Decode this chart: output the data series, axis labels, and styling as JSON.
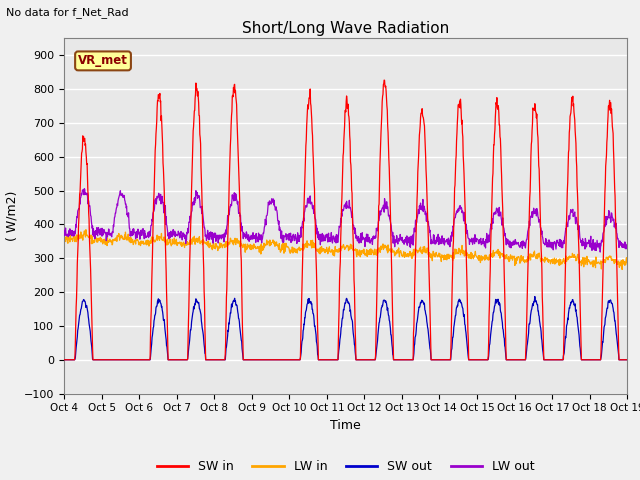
{
  "title": "Short/Long Wave Radiation",
  "subtitle": "No data for f_Net_Rad",
  "ylabel": "( W/m2)",
  "xlabel": "Time",
  "ylim": [
    -100,
    950
  ],
  "yticks": [
    -100,
    0,
    100,
    200,
    300,
    400,
    500,
    600,
    700,
    800,
    900
  ],
  "xtick_labels": [
    "Oct 4",
    "Oct 5",
    "Oct 6",
    "Oct 7",
    "Oct 8",
    "Oct 9",
    "Oct 10",
    "Oct 11",
    "Oct 12",
    "Oct 13",
    "Oct 14",
    "Oct 15",
    "Oct 16",
    "Oct 17",
    "Oct 18",
    "Oct 19"
  ],
  "legend_labels": [
    "SW in",
    "LW in",
    "SW out",
    "LW out"
  ],
  "legend_colors": [
    "#ff0000",
    "#ffa500",
    "#0000cc",
    "#9900cc"
  ],
  "station_label": "VR_met",
  "sw_in_peaks": [
    660,
    0,
    780,
    800,
    805,
    0,
    770,
    760,
    820,
    740,
    760,
    760,
    755,
    775,
    760
  ],
  "sw_out_peak": 175,
  "fig_bg_color": "#f0f0f0",
  "plot_bg_color": "#e8e8e8",
  "sw_in_color": "#ff0000",
  "lw_in_color": "#ffa500",
  "sw_out_color": "#0000bb",
  "lw_out_color": "#9900cc",
  "n_days": 15,
  "pts_per_day": 96
}
